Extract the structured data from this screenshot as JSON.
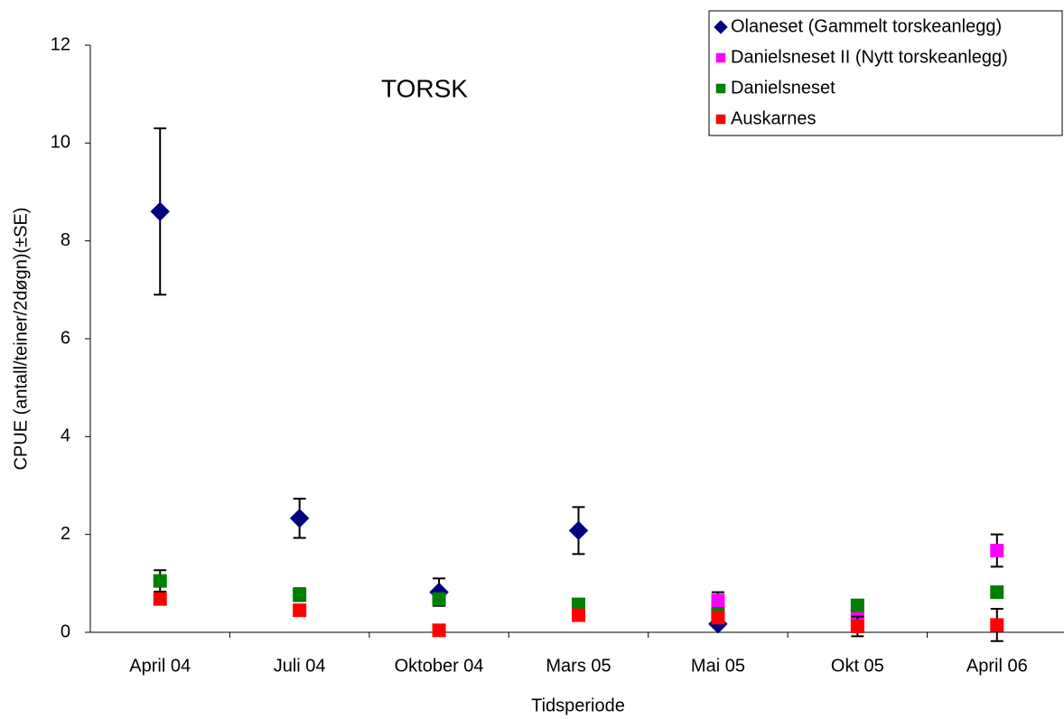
{
  "chart_data": {
    "type": "scatter",
    "title": "TORSK",
    "x_label": "Tidsperiode",
    "y_label": "CPUE (antall/teiner/2døgn)(±SE)",
    "categories": [
      "April 04",
      "Juli 04",
      "Oktober 04",
      "Mars 05",
      "Mai 05",
      "Okt 05",
      "April 06"
    ],
    "ylim": [
      0,
      12
    ],
    "yticks": [
      0,
      2,
      4,
      6,
      8,
      10,
      12
    ],
    "legend": "top-right",
    "series": [
      {
        "name": "Olaneset (Gammelt torskeanlegg)",
        "color": "#000080",
        "marker": "diamond",
        "values": [
          8.6,
          2.33,
          0.82,
          2.08,
          0.17,
          null,
          null
        ],
        "errors": [
          1.7,
          0.4,
          0.28,
          0.48,
          null,
          null,
          null
        ]
      },
      {
        "name": "Danielsneset II (Nytt torskeanlegg)",
        "color": "#FF00FF",
        "marker": "square",
        "values": [
          null,
          null,
          null,
          null,
          0.65,
          0.35,
          1.67
        ],
        "errors": [
          null,
          null,
          null,
          null,
          0.17,
          null,
          0.33
        ]
      },
      {
        "name": "Danielsneset",
        "color": "#008000",
        "marker": "square",
        "values": [
          1.05,
          0.77,
          0.68,
          0.57,
          0.38,
          0.55,
          0.82
        ],
        "errors": [
          0.22,
          0.13,
          null,
          0.1,
          null,
          null,
          null
        ]
      },
      {
        "name": "Auskarnes",
        "color": "#FF0000",
        "marker": "square",
        "values": [
          0.68,
          0.45,
          0.04,
          0.35,
          0.3,
          0.12,
          0.15
        ],
        "errors": [
          0.1,
          null,
          null,
          null,
          null,
          0.2,
          0.33
        ]
      }
    ]
  }
}
